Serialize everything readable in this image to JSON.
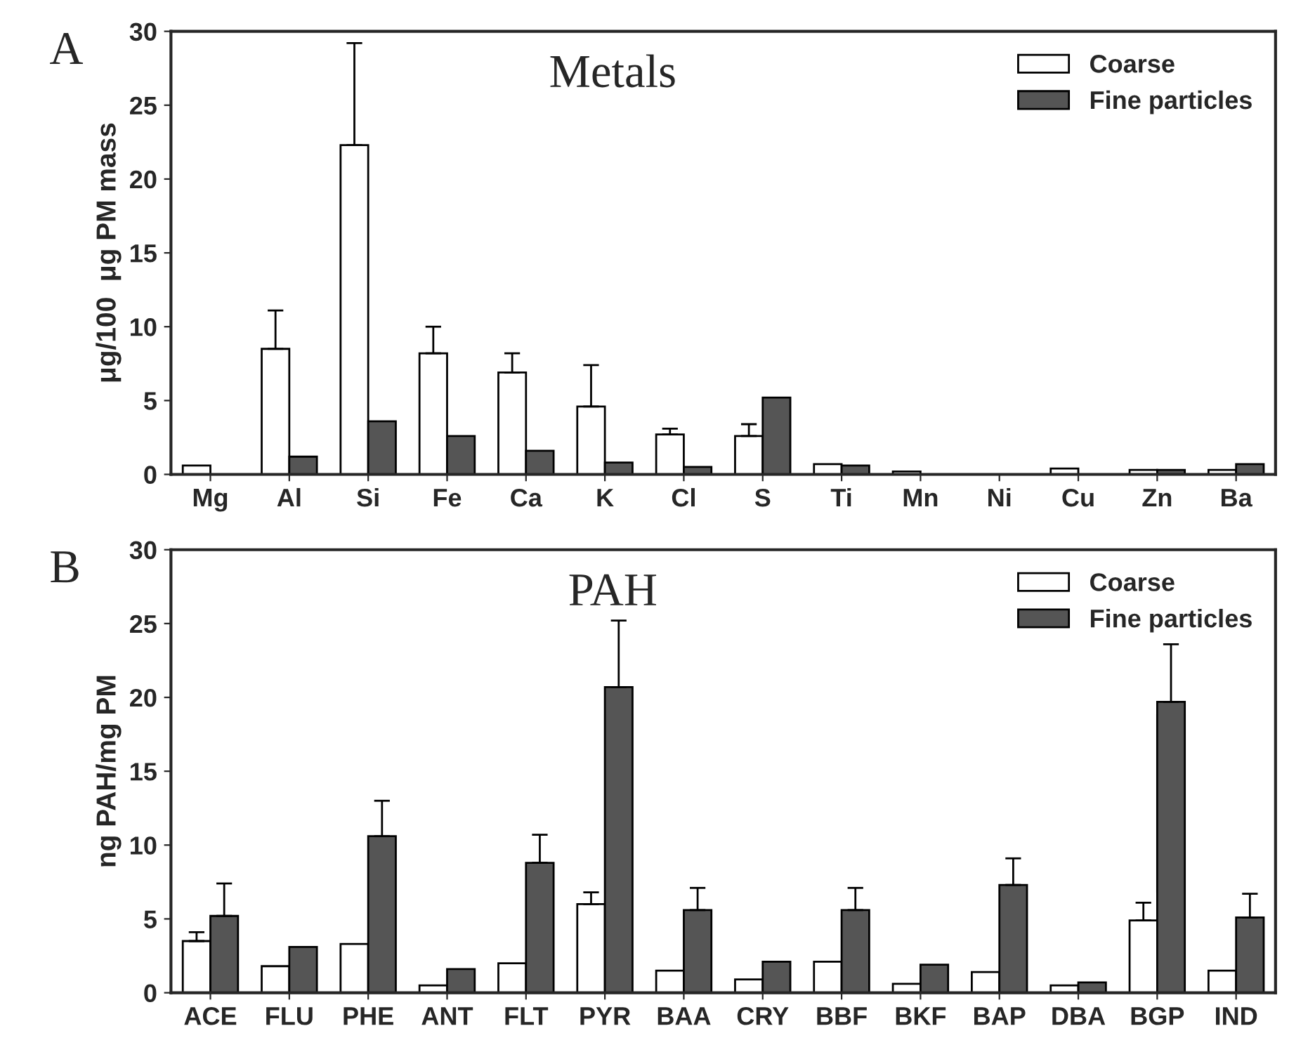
{
  "chart_data": [
    {
      "type": "bar",
      "title": "Metals",
      "ylabel": "μg/100  μg PM mass",
      "annotations": [
        "A"
      ],
      "categories": [
        "Mg",
        "Al",
        "Si",
        "Fe",
        "Ca",
        "K",
        "Cl",
        "S",
        "Ti",
        "Mn",
        "Ni",
        "Cu",
        "Zn",
        "Ba"
      ],
      "series": [
        {
          "name": "Coarse",
          "color": "#ffffff",
          "values": [
            0.6,
            8.5,
            22.3,
            8.2,
            6.9,
            4.6,
            2.7,
            2.6,
            0.7,
            0.2,
            null,
            0.4,
            0.3,
            0.3
          ],
          "errors": [
            null,
            2.6,
            6.9,
            1.8,
            1.3,
            2.8,
            0.4,
            0.8,
            null,
            null,
            null,
            null,
            null,
            null
          ]
        },
        {
          "name": "Fine particles",
          "color": "#555555",
          "values": [
            null,
            1.2,
            3.6,
            2.6,
            1.6,
            0.8,
            0.5,
            5.2,
            0.6,
            null,
            null,
            null,
            0.3,
            0.7
          ]
        }
      ],
      "ylim": [
        0,
        30
      ],
      "yticks": [
        0,
        5,
        10,
        15,
        20,
        25,
        30
      ],
      "legend": "top right"
    },
    {
      "type": "bar",
      "title": "PAH",
      "ylabel": "ng PAH/mg PM",
      "annotations": [
        "B"
      ],
      "categories": [
        "ACE",
        "FLU",
        "PHE",
        "ANT",
        "FLT",
        "PYR",
        "BAA",
        "CRY",
        "BBF",
        "BKF",
        "BAP",
        "DBA",
        "BGP",
        "IND"
      ],
      "series": [
        {
          "name": "Coarse",
          "color": "#ffffff",
          "values": [
            3.5,
            1.8,
            3.3,
            0.5,
            2.0,
            6.0,
            1.5,
            0.9,
            2.1,
            0.6,
            1.4,
            0.5,
            4.9,
            1.5
          ],
          "errors": [
            0.6,
            null,
            null,
            null,
            null,
            0.8,
            null,
            null,
            null,
            null,
            null,
            null,
            1.2,
            null
          ]
        },
        {
          "name": "Fine particles",
          "color": "#555555",
          "values": [
            5.2,
            3.1,
            10.6,
            1.6,
            8.8,
            20.7,
            5.6,
            2.1,
            5.6,
            1.9,
            7.3,
            0.7,
            19.7,
            5.1
          ],
          "errors": [
            2.2,
            null,
            2.4,
            null,
            1.9,
            4.5,
            1.5,
            null,
            1.5,
            null,
            1.8,
            null,
            3.9,
            1.6
          ]
        }
      ],
      "ylim": [
        0,
        30
      ],
      "yticks": [
        0,
        5,
        10,
        15,
        20,
        25,
        30
      ],
      "legend": "top right"
    }
  ]
}
